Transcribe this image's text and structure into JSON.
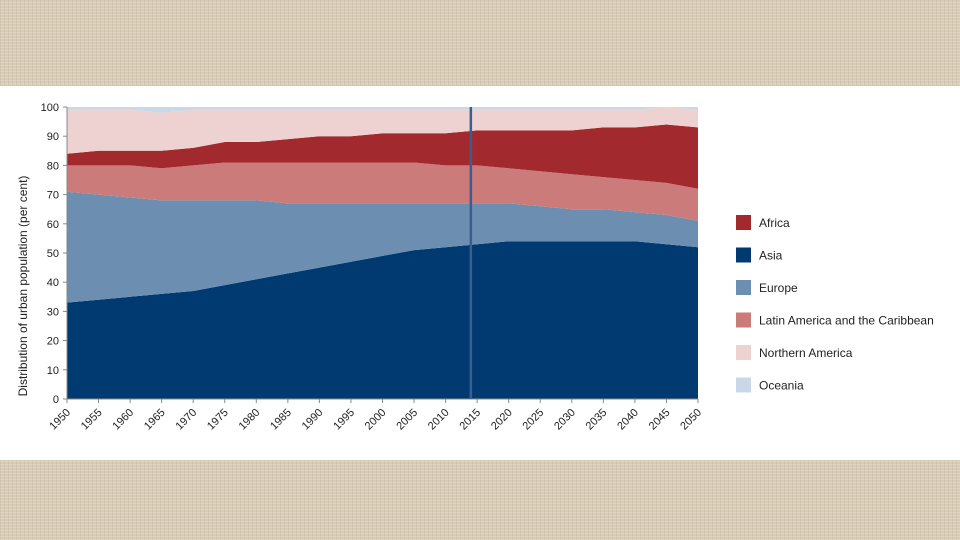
{
  "chart_data": {
    "type": "area",
    "stacked": true,
    "ylabel": "Distribution of urban population (per cent)",
    "xlabel": "",
    "ylim": [
      0,
      100
    ],
    "yticks": [
      0,
      10,
      20,
      30,
      40,
      50,
      60,
      70,
      80,
      90,
      100
    ],
    "x": [
      1950,
      1955,
      1960,
      1965,
      1970,
      1975,
      1980,
      1985,
      1990,
      1995,
      2000,
      2005,
      2010,
      2015,
      2020,
      2025,
      2030,
      2035,
      2040,
      2045,
      2050
    ],
    "divider_x": 2014,
    "legend_position": "right",
    "grid": false,
    "series": [
      {
        "name": "Asia",
        "color": "#003a70",
        "values": [
          33,
          34,
          35,
          36,
          37,
          39,
          41,
          43,
          45,
          47,
          49,
          51,
          52,
          53,
          54,
          54,
          54,
          54,
          54,
          53,
          52
        ]
      },
      {
        "name": "Europe",
        "color": "#6c8fb1",
        "values": [
          38,
          36,
          34,
          32,
          31,
          29,
          27,
          24,
          22,
          20,
          18,
          16,
          15,
          14,
          13,
          12,
          11,
          11,
          10,
          10,
          9
        ]
      },
      {
        "name": "Latin America and the Caribbean",
        "color": "#cb7b7a",
        "values": [
          9,
          10,
          11,
          11,
          12,
          13,
          13,
          14,
          14,
          14,
          14,
          14,
          13,
          13,
          12,
          12,
          12,
          11,
          11,
          11,
          11
        ]
      },
      {
        "name": "Africa",
        "color": "#a2292d",
        "values": [
          4,
          5,
          5,
          6,
          6,
          7,
          7,
          8,
          9,
          9,
          10,
          10,
          11,
          12,
          13,
          14,
          15,
          17,
          18,
          20,
          21
        ]
      },
      {
        "name": "Northern America",
        "color": "#eed2d2",
        "values": [
          15,
          14,
          14,
          13,
          13,
          11,
          11,
          10,
          9,
          9,
          8,
          8,
          8,
          7,
          7,
          7,
          7,
          6,
          6,
          6,
          6
        ]
      },
      {
        "name": "Oceania",
        "color": "#c9d8e8",
        "values": [
          1,
          1,
          1,
          2,
          1,
          1,
          1,
          1,
          1,
          1,
          1,
          1,
          1,
          1,
          1,
          1,
          1,
          1,
          1,
          0,
          1
        ]
      }
    ],
    "legend_order": [
      "Africa",
      "Asia",
      "Europe",
      "Latin America and the Caribbean",
      "Northern America",
      "Oceania"
    ],
    "axis_color": "#888888",
    "divider_color": "#3a5f8f"
  }
}
